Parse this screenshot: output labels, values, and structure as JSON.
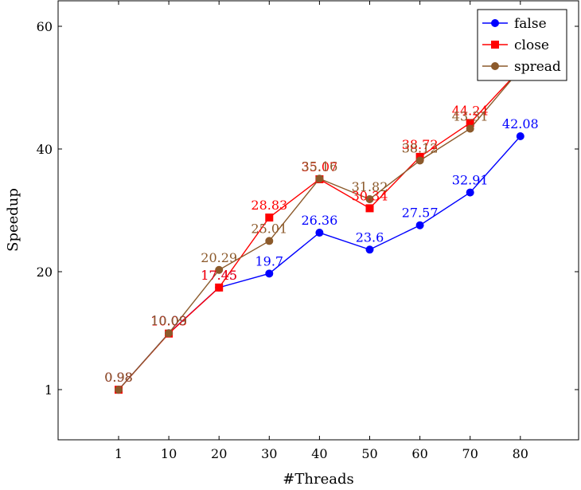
{
  "chart_data": {
    "type": "line",
    "title": "",
    "xlabel": "#Threads",
    "ylabel": "Speedup",
    "categories": [
      "1",
      "10",
      "20",
      "30",
      "40",
      "50",
      "60",
      "70",
      "80"
    ],
    "y_ticks": [
      "1",
      "20",
      "40",
      "60"
    ],
    "grid": false,
    "legend_position": "top-right",
    "series": [
      {
        "name": "false",
        "color": "#0000ff",
        "marker": "circle",
        "values": [
          0.98,
          10.09,
          17.45,
          19.7,
          26.36,
          23.6,
          27.57,
          32.91,
          42.08
        ],
        "labels": [
          "0.98",
          "10.09",
          "17.45",
          "19.7",
          "26.36",
          "23.6",
          "27.57",
          "32.91",
          "42.08"
        ]
      },
      {
        "name": "close",
        "color": "#ff0000",
        "marker": "square",
        "values": [
          0.98,
          10.03,
          17.45,
          28.83,
          35.07,
          30.34,
          38.72,
          44.24,
          53
        ],
        "labels": [
          "0.98",
          "10.03",
          "17.45",
          "28.83",
          "35.07",
          "30.34",
          "38.72",
          "44.24",
          ""
        ]
      },
      {
        "name": "spread",
        "color": "#8c5a2b",
        "marker": "circle",
        "values": [
          0.98,
          10.09,
          20.29,
          25.01,
          35.16,
          31.82,
          38.12,
          43.31,
          53
        ],
        "labels": [
          "0.98",
          "10.09",
          "20.29",
          "25.01",
          "35.16",
          "31.82",
          "38.12",
          "43.31",
          ""
        ]
      }
    ]
  }
}
